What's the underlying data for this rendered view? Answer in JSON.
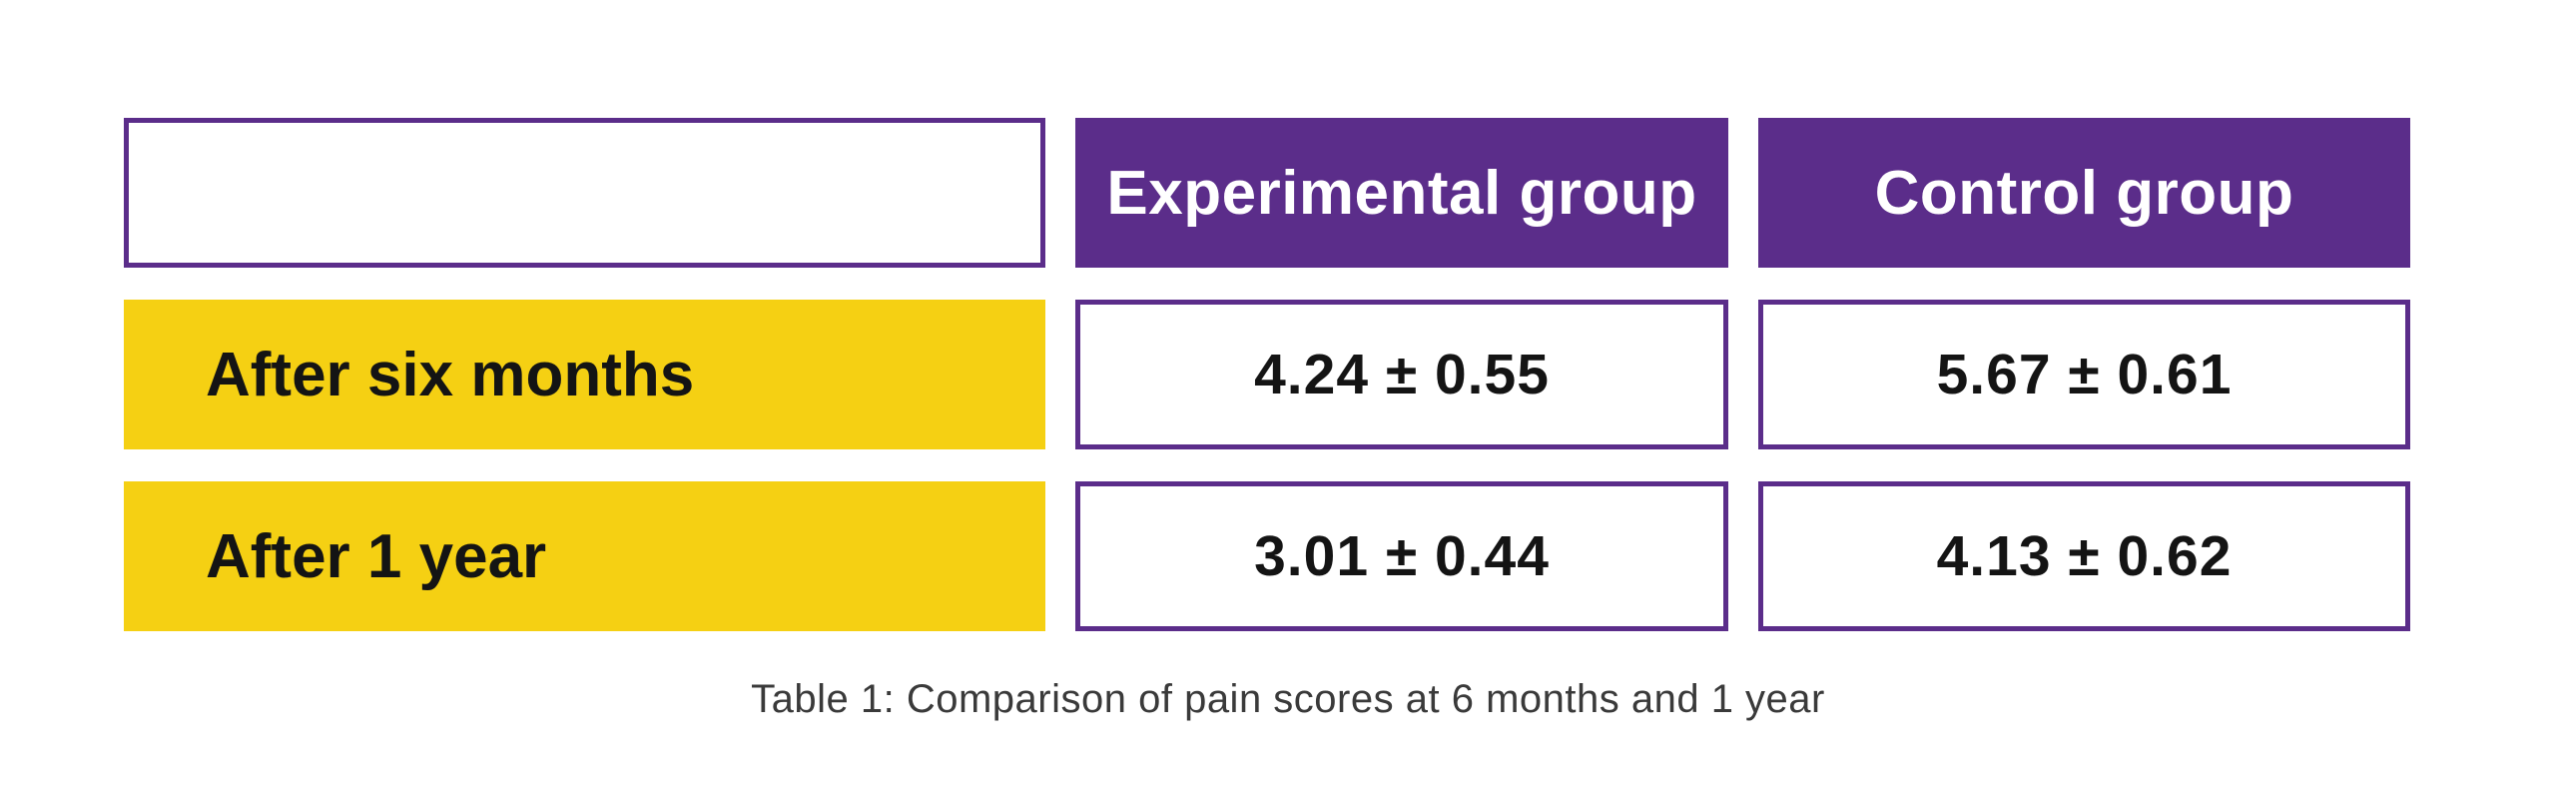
{
  "figure": {
    "caption": "Table 1: Comparison of pain scores at 6 months and 1 year"
  },
  "table": {
    "column_headers": [
      "Experimental group",
      "Control group"
    ],
    "rows": [
      {
        "label": "After six months",
        "experimental": "4.24 ± 0.55",
        "control": "5.67 ± 0.61"
      },
      {
        "label": "After 1 year",
        "experimental": "3.01 ± 0.44",
        "control": "4.13 ± 0.62"
      }
    ]
  },
  "colors": {
    "purple": "#5b2d8a",
    "yellow": "#f5d013",
    "text-dark": "#141414",
    "caption-gray": "#3a3a3a"
  },
  "chart_data": {
    "type": "table",
    "title": "Table 1: Comparison of pain scores at 6 months and 1 year",
    "columns": [
      "",
      "Experimental group",
      "Control group"
    ],
    "categories": [
      "After six months",
      "After 1 year"
    ],
    "series": [
      {
        "name": "Experimental group",
        "values": [
          4.24,
          3.01
        ],
        "sd": [
          0.55,
          0.44
        ]
      },
      {
        "name": "Control group",
        "values": [
          5.67,
          4.13
        ],
        "sd": [
          0.61,
          0.62
        ]
      }
    ],
    "rows": [
      [
        "After six months",
        "4.24 ± 0.55",
        "5.67 ± 0.61"
      ],
      [
        "After 1 year",
        "3.01 ± 0.44",
        "4.13 ± 0.62"
      ]
    ],
    "layout": {
      "header_fill": "#5b2d8a",
      "row_label_fill": "#f5d013",
      "grid": "boxed-cells"
    }
  }
}
